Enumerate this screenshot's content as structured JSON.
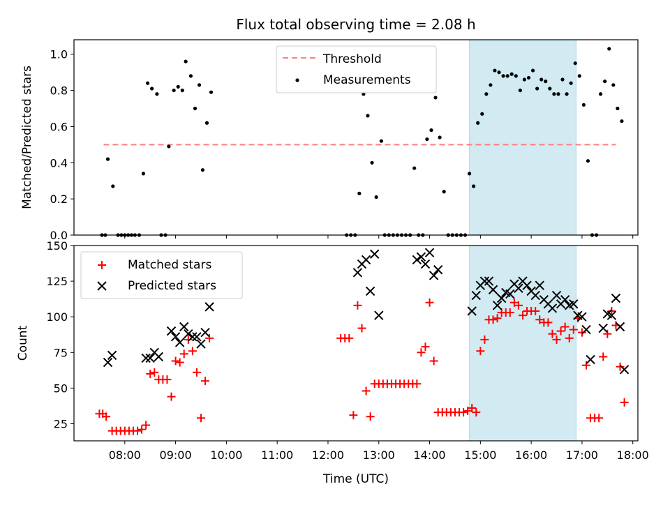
{
  "title": "Flux total observing time = 2.08 h",
  "colors": {
    "threshold": "#ff7f7f",
    "measurement": "#000000",
    "matched": "#ff0000",
    "predicted": "#000000",
    "highlight": "#add8e6"
  },
  "chart_data": [
    {
      "type": "scatter",
      "ylabel": "Matched/Predicted stars",
      "ylim": [
        0,
        1.08
      ],
      "xlim_hours": [
        7.0,
        18.1
      ],
      "yticks": [
        0.0,
        0.2,
        0.4,
        0.6,
        0.8,
        1.0
      ],
      "ytick_labels": [
        "0.0",
        "0.2",
        "0.4",
        "0.6",
        "0.8",
        "1.0"
      ],
      "highlight_span": [
        "14:47",
        "16:53"
      ],
      "legend": {
        "position": "top-center",
        "entries": [
          "Threshold",
          "Measurements"
        ]
      },
      "threshold": {
        "name": "Threshold",
        "value": 0.5,
        "x": [
          "07:35",
          "17:40"
        ]
      },
      "series": [
        {
          "name": "Measurements",
          "points": [
            [
              "07:33",
              0
            ],
            [
              "07:37",
              0
            ],
            [
              "07:40",
              0.42
            ],
            [
              "07:46",
              0.27
            ],
            [
              "07:52",
              0
            ],
            [
              "07:56",
              0
            ],
            [
              "08:00",
              0
            ],
            [
              "08:04",
              0
            ],
            [
              "08:08",
              0
            ],
            [
              "08:12",
              0
            ],
            [
              "08:17",
              0
            ],
            [
              "08:22",
              0.34
            ],
            [
              "08:27",
              0.84
            ],
            [
              "08:32",
              0.81
            ],
            [
              "08:38",
              0.78
            ],
            [
              "08:43",
              0
            ],
            [
              "08:48",
              0
            ],
            [
              "08:52",
              0.49
            ],
            [
              "08:58",
              0.8
            ],
            [
              "09:03",
              0.82
            ],
            [
              "09:08",
              0.8
            ],
            [
              "09:12",
              0.96
            ],
            [
              "09:18",
              0.88
            ],
            [
              "09:23",
              0.7
            ],
            [
              "09:28",
              0.83
            ],
            [
              "09:32",
              0.36
            ],
            [
              "09:37",
              0.62
            ],
            [
              "09:42",
              0.79
            ],
            [
              "12:22",
              0
            ],
            [
              "12:27",
              0
            ],
            [
              "12:32",
              0
            ],
            [
              "12:37",
              0.23
            ],
            [
              "12:42",
              0.78
            ],
            [
              "12:47",
              0.66
            ],
            [
              "12:52",
              0.4
            ],
            [
              "12:57",
              0.21
            ],
            [
              "13:03",
              0.52
            ],
            [
              "13:07",
              0
            ],
            [
              "13:12",
              0
            ],
            [
              "13:17",
              0
            ],
            [
              "13:22",
              0
            ],
            [
              "13:27",
              0
            ],
            [
              "13:32",
              0
            ],
            [
              "13:37",
              0
            ],
            [
              "13:42",
              0.37
            ],
            [
              "13:47",
              0
            ],
            [
              "13:52",
              0
            ],
            [
              "13:57",
              0.53
            ],
            [
              "14:02",
              0.58
            ],
            [
              "14:07",
              0.76
            ],
            [
              "14:12",
              0.54
            ],
            [
              "14:17",
              0.24
            ],
            [
              "14:22",
              0
            ],
            [
              "14:27",
              0
            ],
            [
              "14:32",
              0
            ],
            [
              "14:37",
              0
            ],
            [
              "14:42",
              0
            ],
            [
              "14:47",
              0.34
            ],
            [
              "14:52",
              0.27
            ],
            [
              "14:57",
              0.62
            ],
            [
              "15:02",
              0.67
            ],
            [
              "15:07",
              0.78
            ],
            [
              "15:12",
              0.83
            ],
            [
              "15:17",
              0.91
            ],
            [
              "15:22",
              0.9
            ],
            [
              "15:27",
              0.88
            ],
            [
              "15:32",
              0.88
            ],
            [
              "15:37",
              0.89
            ],
            [
              "15:42",
              0.88
            ],
            [
              "15:47",
              0.8
            ],
            [
              "15:52",
              0.86
            ],
            [
              "15:57",
              0.87
            ],
            [
              "16:02",
              0.91
            ],
            [
              "16:07",
              0.81
            ],
            [
              "16:12",
              0.86
            ],
            [
              "16:17",
              0.85
            ],
            [
              "16:22",
              0.81
            ],
            [
              "16:27",
              0.78
            ],
            [
              "16:32",
              0.78
            ],
            [
              "16:37",
              0.86
            ],
            [
              "16:42",
              0.78
            ],
            [
              "16:47",
              0.84
            ],
            [
              "16:52",
              0.95
            ],
            [
              "16:57",
              0.88
            ],
            [
              "17:02",
              0.72
            ],
            [
              "17:07",
              0.41
            ],
            [
              "17:12",
              0
            ],
            [
              "17:17",
              0
            ],
            [
              "17:22",
              0.78
            ],
            [
              "17:27",
              0.85
            ],
            [
              "17:32",
              1.03
            ],
            [
              "17:37",
              0.83
            ],
            [
              "17:42",
              0.7
            ],
            [
              "17:47",
              0.63
            ]
          ]
        }
      ]
    },
    {
      "type": "scatter",
      "xlabel": "Time (UTC)",
      "ylabel": "Count",
      "ylim": [
        13,
        150
      ],
      "xlim_hours": [
        7.0,
        18.1
      ],
      "yticks": [
        25,
        50,
        75,
        100,
        125,
        150
      ],
      "ytick_labels": [
        "25",
        "50",
        "75",
        "100",
        "125",
        "150"
      ],
      "xticks": [
        "08:00",
        "09:00",
        "10:00",
        "11:00",
        "12:00",
        "13:00",
        "14:00",
        "15:00",
        "16:00",
        "17:00",
        "18:00"
      ],
      "highlight_span": [
        "14:47",
        "16:53"
      ],
      "legend": {
        "position": "top-left",
        "entries": [
          "Matched stars",
          "Predicted stars"
        ]
      },
      "series": [
        {
          "name": "Matched stars",
          "marker": "plus",
          "points": [
            [
              "07:30",
              32
            ],
            [
              "07:34",
              32
            ],
            [
              "07:38",
              30
            ],
            [
              "07:45",
              20
            ],
            [
              "07:50",
              20
            ],
            [
              "07:55",
              20
            ],
            [
              "08:00",
              20
            ],
            [
              "08:05",
              20
            ],
            [
              "08:10",
              20
            ],
            [
              "08:15",
              20
            ],
            [
              "08:20",
              21
            ],
            [
              "08:25",
              24
            ],
            [
              "08:30",
              60
            ],
            [
              "08:35",
              61
            ],
            [
              "08:40",
              56
            ],
            [
              "08:45",
              56
            ],
            [
              "08:50",
              56
            ],
            [
              "08:55",
              44
            ],
            [
              "09:00",
              69
            ],
            [
              "09:05",
              68
            ],
            [
              "09:10",
              74
            ],
            [
              "09:15",
              84
            ],
            [
              "09:20",
              76
            ],
            [
              "09:25",
              61
            ],
            [
              "09:30",
              29
            ],
            [
              "09:35",
              55
            ],
            [
              "09:40",
              85
            ],
            [
              "12:15",
              85
            ],
            [
              "12:20",
              85
            ],
            [
              "12:25",
              85
            ],
            [
              "12:30",
              31
            ],
            [
              "12:35",
              108
            ],
            [
              "12:40",
              92
            ],
            [
              "12:45",
              48
            ],
            [
              "12:50",
              30
            ],
            [
              "12:55",
              53
            ],
            [
              "13:00",
              53
            ],
            [
              "13:05",
              53
            ],
            [
              "13:10",
              53
            ],
            [
              "13:15",
              53
            ],
            [
              "13:20",
              53
            ],
            [
              "13:25",
              53
            ],
            [
              "13:30",
              53
            ],
            [
              "13:35",
              53
            ],
            [
              "13:40",
              53
            ],
            [
              "13:45",
              53
            ],
            [
              "13:50",
              75
            ],
            [
              "13:55",
              79
            ],
            [
              "14:00",
              110
            ],
            [
              "14:05",
              69
            ],
            [
              "14:10",
              33
            ],
            [
              "14:15",
              33
            ],
            [
              "14:20",
              33
            ],
            [
              "14:25",
              33
            ],
            [
              "14:30",
              33
            ],
            [
              "14:35",
              33
            ],
            [
              "14:40",
              33
            ],
            [
              "14:45",
              34
            ],
            [
              "14:50",
              36
            ],
            [
              "14:55",
              33
            ],
            [
              "15:00",
              76
            ],
            [
              "15:05",
              84
            ],
            [
              "15:10",
              98
            ],
            [
              "15:15",
              98
            ],
            [
              "15:20",
              99
            ],
            [
              "15:25",
              103
            ],
            [
              "15:30",
              103
            ],
            [
              "15:35",
              103
            ],
            [
              "15:40",
              110
            ],
            [
              "15:45",
              108
            ],
            [
              "15:50",
              101
            ],
            [
              "15:55",
              104
            ],
            [
              "16:00",
              104
            ],
            [
              "16:05",
              104
            ],
            [
              "16:10",
              98
            ],
            [
              "16:15",
              96
            ],
            [
              "16:20",
              96
            ],
            [
              "16:25",
              88
            ],
            [
              "16:30",
              84
            ],
            [
              "16:35",
              90
            ],
            [
              "16:40",
              93
            ],
            [
              "16:45",
              85
            ],
            [
              "16:50",
              91
            ],
            [
              "16:55",
              99
            ],
            [
              "17:00",
              89
            ],
            [
              "17:05",
              66
            ],
            [
              "17:10",
              29
            ],
            [
              "17:15",
              29
            ],
            [
              "17:20",
              29
            ],
            [
              "17:25",
              72
            ],
            [
              "17:30",
              88
            ],
            [
              "17:35",
              104
            ],
            [
              "17:40",
              94
            ],
            [
              "17:45",
              65
            ],
            [
              "17:50",
              40
            ]
          ]
        },
        {
          "name": "Predicted stars",
          "marker": "x",
          "points": [
            [
              "07:40",
              68
            ],
            [
              "07:45",
              73
            ],
            [
              "08:25",
              71
            ],
            [
              "08:30",
              71
            ],
            [
              "08:35",
              75
            ],
            [
              "08:40",
              72
            ],
            [
              "08:55",
              90
            ],
            [
              "09:00",
              86
            ],
            [
              "09:05",
              82
            ],
            [
              "09:10",
              93
            ],
            [
              "09:15",
              88
            ],
            [
              "09:20",
              86
            ],
            [
              "09:25",
              86
            ],
            [
              "09:30",
              81
            ],
            [
              "09:35",
              89
            ],
            [
              "09:40",
              107
            ],
            [
              "12:35",
              131
            ],
            [
              "12:40",
              137
            ],
            [
              "12:45",
              140
            ],
            [
              "12:50",
              118
            ],
            [
              "12:55",
              144
            ],
            [
              "13:00",
              101
            ],
            [
              "13:45",
              140
            ],
            [
              "13:50",
              142
            ],
            [
              "13:55",
              137
            ],
            [
              "14:00",
              145
            ],
            [
              "14:05",
              129
            ],
            [
              "14:10",
              133
            ],
            [
              "14:50",
              104
            ],
            [
              "14:55",
              115
            ],
            [
              "15:00",
              122
            ],
            [
              "15:05",
              125
            ],
            [
              "15:10",
              125
            ],
            [
              "15:15",
              119
            ],
            [
              "15:20",
              108
            ],
            [
              "15:25",
              113
            ],
            [
              "15:30",
              117
            ],
            [
              "15:35",
              116
            ],
            [
              "15:40",
              123
            ],
            [
              "15:45",
              120
            ],
            [
              "15:50",
              125
            ],
            [
              "15:55",
              122
            ],
            [
              "16:00",
              118
            ],
            [
              "16:05",
              115
            ],
            [
              "16:10",
              122
            ],
            [
              "16:15",
              112
            ],
            [
              "16:20",
              109
            ],
            [
              "16:25",
              106
            ],
            [
              "16:30",
              115
            ],
            [
              "16:35",
              109
            ],
            [
              "16:40",
              112
            ],
            [
              "16:45",
              108
            ],
            [
              "16:50",
              109
            ],
            [
              "16:55",
              101
            ],
            [
              "17:00",
              100
            ],
            [
              "17:05",
              91
            ],
            [
              "17:10",
              70
            ],
            [
              "17:25",
              92
            ],
            [
              "17:30",
              102
            ],
            [
              "17:35",
              101
            ],
            [
              "17:40",
              113
            ],
            [
              "17:45",
              93
            ],
            [
              "17:50",
              63
            ]
          ]
        }
      ]
    }
  ]
}
